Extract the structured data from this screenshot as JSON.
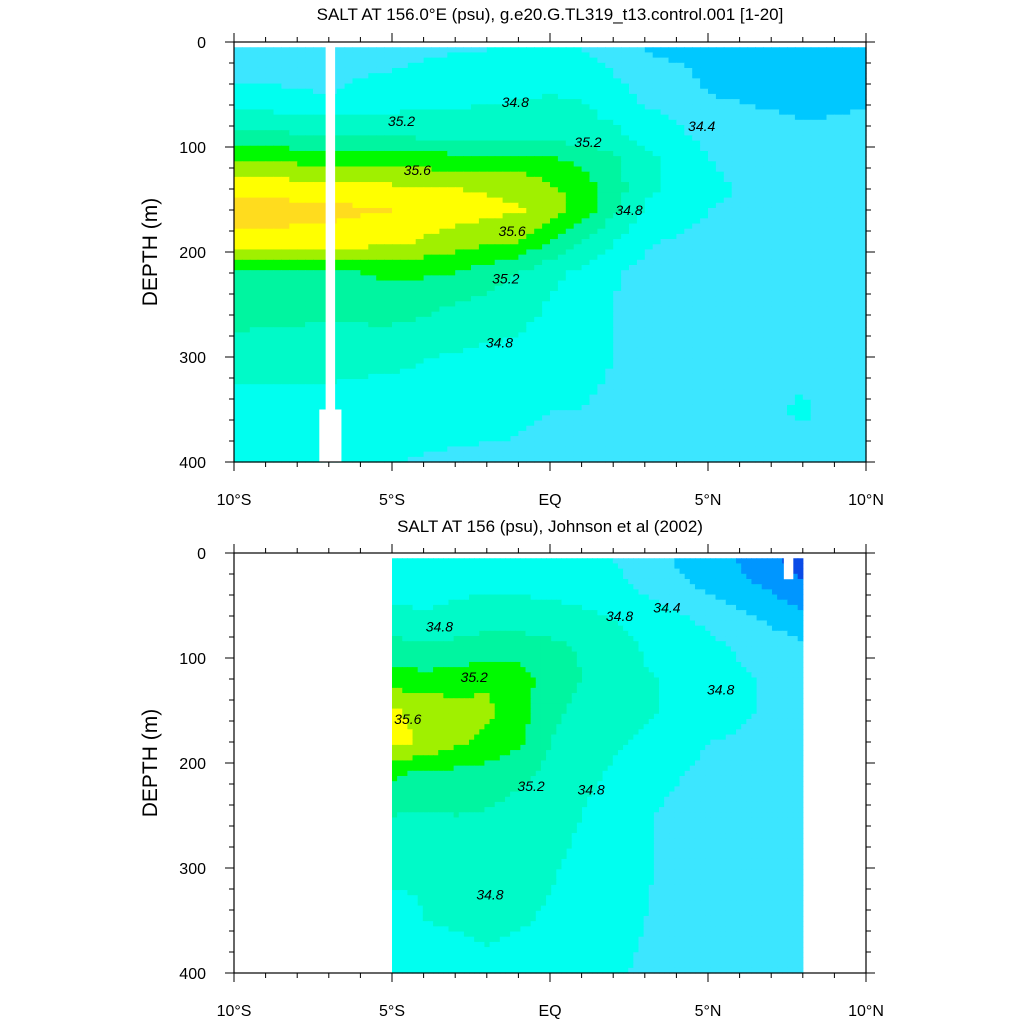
{
  "chart_data": [
    {
      "type": "heatmap",
      "subtype": "filled-contour",
      "title": "SALT AT 156.0°E (psu), g.e20.G.TL319_t13.control.001 [1-20]",
      "ylabel": "DEPTH (m)",
      "xlabel": "",
      "x_unit": "degrees latitude",
      "y_unit": "m",
      "xlim": [
        -10,
        10
      ],
      "ylim": [
        400,
        0
      ],
      "y_inverted": true,
      "x_ticks": [
        -10,
        -5,
        0,
        5,
        10
      ],
      "x_tick_labels": [
        "10°S",
        "5°S",
        "EQ",
        "5°N",
        "10°N"
      ],
      "y_ticks": [
        0,
        100,
        200,
        300,
        400
      ],
      "y_tick_labels": [
        "0",
        "100",
        "200",
        "300",
        "400"
      ],
      "data_extent": {
        "lat": [
          -10,
          10
        ],
        "depth": [
          5,
          400
        ]
      },
      "missing_columns": [
        {
          "lat": [
            -7.1,
            -6.8
          ],
          "depth": [
            0,
            350
          ]
        },
        {
          "lat": [
            -7.3,
            -6.6
          ],
          "depth": [
            350,
            400
          ]
        }
      ],
      "contour_levels": [
        34.2,
        34.4,
        34.6,
        34.8,
        35.0,
        35.2,
        35.4,
        35.6,
        35.8
      ],
      "contour_label_list": [
        {
          "text": "34.8",
          "lat": -1.1,
          "depth": 57
        },
        {
          "text": "34.4",
          "lat": 4.8,
          "depth": 80
        },
        {
          "text": "35.2",
          "lat": -4.7,
          "depth": 75
        },
        {
          "text": "35.2",
          "lat": 1.2,
          "depth": 95
        },
        {
          "text": "35.6",
          "lat": -4.2,
          "depth": 122
        },
        {
          "text": "35.6",
          "lat": -1.2,
          "depth": 180
        },
        {
          "text": "34.8",
          "lat": 2.5,
          "depth": 160
        },
        {
          "text": "35.2",
          "lat": -1.4,
          "depth": 225
        },
        {
          "text": "34.8",
          "lat": -1.6,
          "depth": 286
        }
      ],
      "salinity_field": {
        "lat": [
          -10,
          -7,
          -5,
          -3,
          -1,
          0,
          1,
          2,
          3,
          5,
          8,
          10
        ],
        "depth": [
          5,
          50,
          90,
          110,
          140,
          160,
          190,
          220,
          250,
          300,
          350,
          400
        ],
        "values": [
          [
            34.55,
            34.55,
            34.55,
            34.58,
            34.6,
            34.62,
            34.6,
            34.5,
            34.38,
            34.35,
            34.25,
            34.3
          ],
          [
            34.62,
            34.6,
            34.65,
            34.72,
            34.78,
            34.8,
            34.78,
            34.68,
            34.55,
            34.4,
            34.32,
            34.38
          ],
          [
            35.1,
            35.0,
            35.0,
            34.95,
            34.95,
            34.93,
            34.9,
            34.85,
            34.75,
            34.55,
            34.45,
            34.45
          ],
          [
            35.35,
            35.3,
            35.3,
            35.25,
            35.25,
            35.2,
            35.15,
            35.05,
            34.85,
            34.6,
            34.5,
            34.48
          ],
          [
            35.75,
            35.7,
            35.65,
            35.6,
            35.55,
            35.45,
            35.3,
            35.1,
            34.85,
            34.62,
            34.55,
            34.5
          ],
          [
            35.9,
            35.85,
            35.8,
            35.7,
            35.62,
            35.5,
            35.3,
            35.05,
            34.78,
            34.6,
            34.55,
            34.52
          ],
          [
            35.75,
            35.72,
            35.65,
            35.5,
            35.4,
            35.2,
            35.0,
            34.82,
            34.62,
            34.55,
            34.55,
            34.52
          ],
          [
            35.15,
            35.15,
            35.25,
            35.2,
            35.0,
            34.85,
            34.75,
            34.62,
            34.55,
            34.5,
            34.55,
            34.52
          ],
          [
            35.1,
            35.05,
            35.1,
            35.0,
            34.9,
            34.78,
            34.7,
            34.6,
            34.55,
            34.5,
            34.52,
            34.5
          ],
          [
            34.9,
            34.9,
            34.85,
            34.78,
            34.72,
            34.68,
            34.65,
            34.6,
            34.55,
            34.52,
            34.55,
            34.5
          ],
          [
            34.7,
            34.7,
            34.68,
            34.65,
            34.62,
            34.6,
            34.6,
            34.57,
            34.55,
            34.52,
            34.62,
            34.5
          ],
          [
            34.62,
            34.62,
            34.6,
            34.58,
            34.58,
            34.57,
            34.56,
            34.55,
            34.55,
            34.52,
            34.55,
            34.5
          ]
        ]
      }
    },
    {
      "type": "heatmap",
      "subtype": "filled-contour",
      "title": "SALT AT 156 (psu), Johnson et al (2002)",
      "ylabel": "DEPTH (m)",
      "xlabel": "",
      "x_unit": "degrees latitude",
      "y_unit": "m",
      "xlim": [
        -10,
        10
      ],
      "ylim": [
        400,
        0
      ],
      "y_inverted": true,
      "x_ticks": [
        -10,
        -5,
        0,
        5,
        10
      ],
      "x_tick_labels": [
        "10°S",
        "5°S",
        "EQ",
        "5°N",
        "10°N"
      ],
      "y_ticks": [
        0,
        100,
        200,
        300,
        400
      ],
      "y_tick_labels": [
        "0",
        "100",
        "200",
        "300",
        "400"
      ],
      "data_extent": {
        "lat": [
          -5,
          8
        ],
        "depth": [
          5,
          400
        ]
      },
      "missing_columns": [
        {
          "lat": [
            7.4,
            7.7
          ],
          "depth": [
            0,
            25
          ]
        }
      ],
      "contour_levels": [
        34.0,
        34.2,
        34.4,
        34.6,
        34.8,
        35.0,
        35.2,
        35.4,
        35.6,
        35.8
      ],
      "contour_label_list": [
        {
          "text": "34.8",
          "lat": -3.5,
          "depth": 70
        },
        {
          "text": "34.8",
          "lat": 2.2,
          "depth": 60
        },
        {
          "text": "34.4",
          "lat": 3.7,
          "depth": 52
        },
        {
          "text": "34.8",
          "lat": 5.4,
          "depth": 130
        },
        {
          "text": "35.2",
          "lat": -2.4,
          "depth": 118
        },
        {
          "text": "35.6",
          "lat": -4.5,
          "depth": 158
        },
        {
          "text": "35.2",
          "lat": -0.6,
          "depth": 222
        },
        {
          "text": "34.8",
          "lat": 1.3,
          "depth": 225
        },
        {
          "text": "34.8",
          "lat": -1.9,
          "depth": 325
        }
      ],
      "salinity_field": {
        "lat": [
          -5,
          -4,
          -3,
          -2,
          -1,
          0,
          1,
          2,
          3,
          4,
          5,
          6,
          7,
          8
        ],
        "depth": [
          5,
          30,
          60,
          90,
          120,
          150,
          180,
          210,
          250,
          300,
          350,
          400
        ],
        "values": [
          [
            34.62,
            34.65,
            34.68,
            34.7,
            34.7,
            34.68,
            34.65,
            34.6,
            34.5,
            34.38,
            34.28,
            34.18,
            34.05,
            33.9
          ],
          [
            34.65,
            34.68,
            34.72,
            34.75,
            34.75,
            34.72,
            34.7,
            34.65,
            34.55,
            34.45,
            34.35,
            34.25,
            34.15,
            34.0
          ],
          [
            34.9,
            34.82,
            34.88,
            34.92,
            34.9,
            34.88,
            34.84,
            34.78,
            34.7,
            34.62,
            34.55,
            34.45,
            34.35,
            34.25
          ],
          [
            35.05,
            35.05,
            35.05,
            35.08,
            35.1,
            35.05,
            34.98,
            34.9,
            34.78,
            34.72,
            34.65,
            34.58,
            34.5,
            34.45
          ],
          [
            35.3,
            35.25,
            35.3,
            35.35,
            35.3,
            35.1,
            35.0,
            34.9,
            34.82,
            34.78,
            34.7,
            34.62,
            34.58,
            34.55
          ],
          [
            35.62,
            35.55,
            35.48,
            35.45,
            35.3,
            35.05,
            34.95,
            34.88,
            34.82,
            34.78,
            34.72,
            34.62,
            34.58,
            34.55
          ],
          [
            35.65,
            35.58,
            35.45,
            35.35,
            35.25,
            35.0,
            34.9,
            34.82,
            34.78,
            34.7,
            34.6,
            34.58,
            34.55,
            34.55
          ],
          [
            35.25,
            35.15,
            35.15,
            35.12,
            35.05,
            34.95,
            34.85,
            34.78,
            34.7,
            34.62,
            34.55,
            34.55,
            34.55,
            34.55
          ],
          [
            35.0,
            34.98,
            35.0,
            34.98,
            34.92,
            34.88,
            34.8,
            34.72,
            34.62,
            34.55,
            34.53,
            34.58,
            34.55,
            34.55
          ],
          [
            34.85,
            34.82,
            34.85,
            34.88,
            34.85,
            34.82,
            34.75,
            34.68,
            34.62,
            34.55,
            34.55,
            34.55,
            34.55,
            34.55
          ],
          [
            34.72,
            34.8,
            34.82,
            34.85,
            34.82,
            34.78,
            34.72,
            34.65,
            34.6,
            34.55,
            34.55,
            34.55,
            34.55,
            34.55
          ],
          [
            34.68,
            34.7,
            34.72,
            34.75,
            34.72,
            34.7,
            34.68,
            34.62,
            34.58,
            34.56,
            34.55,
            34.55,
            34.55,
            34.55
          ]
        ]
      }
    }
  ],
  "colormap": {
    "level_boundaries": [
      34.0,
      34.2,
      34.4,
      34.6,
      34.8,
      35.0,
      35.2,
      35.4,
      35.6,
      35.8
    ],
    "colors": [
      "#0A4BE6",
      "#0096FF",
      "#00C8FF",
      "#3CE6FF",
      "#00FFF0",
      "#00FAC8",
      "#00F5A0",
      "#00FA00",
      "#A0F000",
      "#FFFF00",
      "#FFDC1E"
    ]
  }
}
